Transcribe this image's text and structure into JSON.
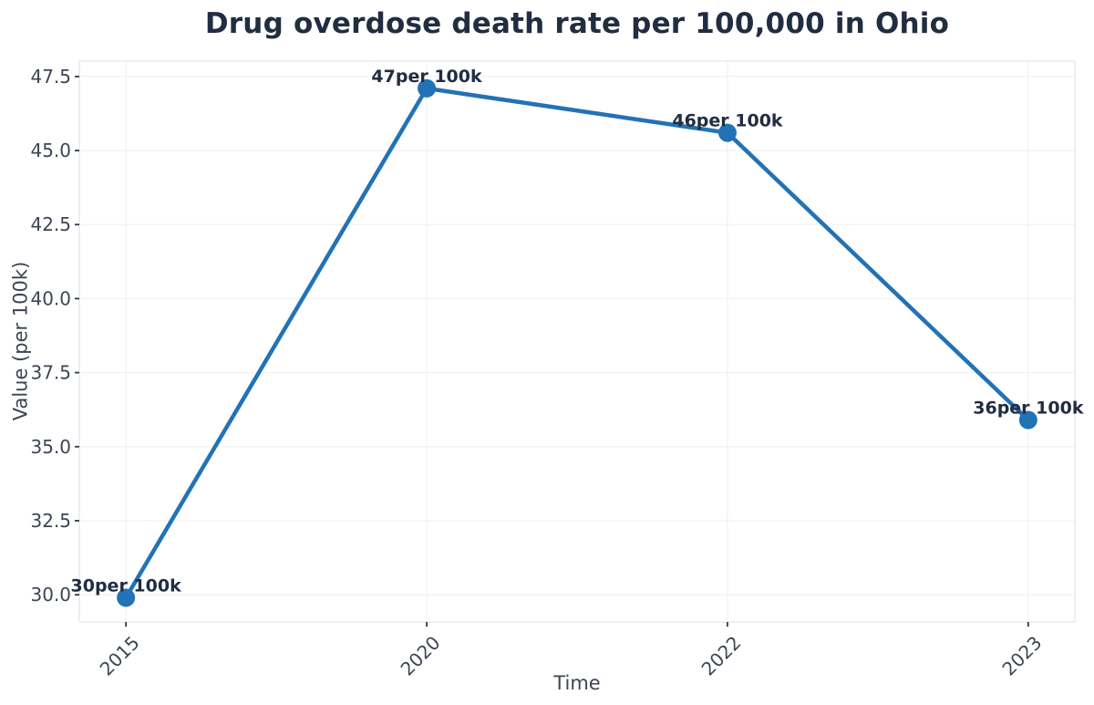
{
  "chart_data": {
    "type": "line",
    "title": "Drug overdose death rate per 100,000 in Ohio",
    "xlabel": "Time",
    "ylabel": "Value (per 100k)",
    "categories": [
      "2015",
      "2020",
      "2022",
      "2023"
    ],
    "values": [
      29.9,
      47.1,
      45.6,
      35.9
    ],
    "point_labels": [
      "30per 100k",
      "47per 100k",
      "46per 100k",
      "36per 100k"
    ],
    "yticks": [
      30.0,
      32.5,
      35.0,
      37.5,
      40.0,
      42.5,
      45.0,
      47.5
    ],
    "ytick_labels": [
      "30.0",
      "32.5",
      "35.0",
      "37.5",
      "40.0",
      "42.5",
      "45.0",
      "47.5"
    ],
    "ylim": [
      29.08,
      48.02
    ],
    "xlim": [
      -0.155,
      3.155
    ],
    "grid": true,
    "legend": false,
    "colors": {
      "line": "#2272b6",
      "marker": "#2272b6",
      "title_text": "#212d40",
      "point_label_text": "#212d40",
      "tick_text": "#3d4554",
      "axis_label_text": "#3d4554",
      "spine": "#e3e6ea",
      "grid": "#f0f2f5",
      "tick_mark": "#333a45",
      "background": "#ffffff"
    }
  }
}
